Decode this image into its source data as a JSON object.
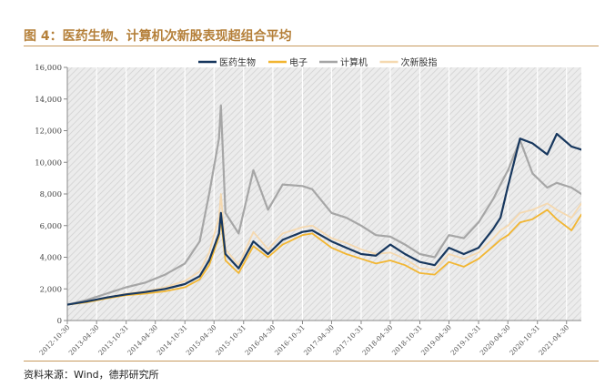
{
  "figure_title": "图 4：医药生物、计算机次新股表现超组合平均",
  "source_note": "资料来源：Wind，德邦研究所",
  "chart_data": {
    "type": "line",
    "title": "",
    "xlabel": "",
    "ylabel": "",
    "ylim": [
      0,
      16000
    ],
    "yticks": [
      0,
      2000,
      4000,
      6000,
      8000,
      10000,
      12000,
      14000,
      16000
    ],
    "ytick_labels": [
      "0",
      "2,000",
      "4,000",
      "6,000",
      "8,000",
      "10,000",
      "12,000",
      "14,000",
      "16,000"
    ],
    "xlim": [
      "2012-10-30",
      "2021-07-31"
    ],
    "xtick_labels": [
      "2012-10-30",
      "2013-04-30",
      "2013-10-31",
      "2014-04-30",
      "2014-10-31",
      "2015-04-30",
      "2015-10-31",
      "2016-04-30",
      "2016-10-31",
      "2017-04-30",
      "2017-10-31",
      "2018-04-30",
      "2018-10-31",
      "2019-04-30",
      "2019-10-31",
      "2020-04-30",
      "2020-10-31",
      "2021-04-30"
    ],
    "grid": true,
    "legend_position": "top-right",
    "series": [
      {
        "name": "医药生物",
        "color": "#17375e",
        "stroke": 2.2,
        "x": [
          "2012-10-30",
          "2013-02-28",
          "2013-06-30",
          "2013-10-31",
          "2014-02-28",
          "2014-06-30",
          "2014-10-31",
          "2015-01-31",
          "2015-03-31",
          "2015-05-31",
          "2015-06-12",
          "2015-07-10",
          "2015-09-30",
          "2015-12-31",
          "2016-03-31",
          "2016-06-30",
          "2016-10-31",
          "2016-12-31",
          "2017-04-30",
          "2017-07-31",
          "2017-10-31",
          "2018-01-31",
          "2018-04-30",
          "2018-07-31",
          "2018-10-31",
          "2019-01-31",
          "2019-04-30",
          "2019-07-31",
          "2019-10-31",
          "2020-01-31",
          "2020-03-15",
          "2020-05-01",
          "2020-07-15",
          "2020-09-30",
          "2020-12-31",
          "2021-02-28",
          "2021-05-31",
          "2021-07-31"
        ],
        "y": [
          1000,
          1200,
          1450,
          1650,
          1800,
          2000,
          2300,
          2800,
          3800,
          5500,
          6800,
          4200,
          3300,
          5000,
          4200,
          5100,
          5600,
          5700,
          5000,
          4600,
          4200,
          4100,
          4800,
          4200,
          3700,
          3500,
          4600,
          4200,
          4600,
          5800,
          6500,
          8500,
          11500,
          11200,
          10500,
          11800,
          11000,
          10800
        ]
      },
      {
        "name": "电子",
        "color": "#f2b632",
        "stroke": 1.8,
        "x": [
          "2012-10-30",
          "2013-02-28",
          "2013-06-30",
          "2013-10-31",
          "2014-02-28",
          "2014-06-30",
          "2014-10-31",
          "2015-01-31",
          "2015-03-31",
          "2015-05-31",
          "2015-06-12",
          "2015-07-10",
          "2015-09-30",
          "2015-12-31",
          "2016-03-31",
          "2016-06-30",
          "2016-10-31",
          "2016-12-31",
          "2017-04-30",
          "2017-07-31",
          "2017-10-31",
          "2018-01-31",
          "2018-04-30",
          "2018-07-31",
          "2018-10-31",
          "2019-01-31",
          "2019-04-30",
          "2019-07-31",
          "2019-10-31",
          "2020-01-31",
          "2020-03-15",
          "2020-05-01",
          "2020-07-15",
          "2020-09-30",
          "2020-12-31",
          "2021-02-28",
          "2021-05-31",
          "2021-07-31"
        ],
        "y": [
          1000,
          1150,
          1400,
          1600,
          1700,
          1850,
          2100,
          2600,
          3500,
          5300,
          6400,
          3800,
          3000,
          4700,
          4000,
          4800,
          5400,
          5500,
          4600,
          4200,
          3900,
          3600,
          3800,
          3500,
          3000,
          2900,
          3700,
          3400,
          3900,
          4700,
          5100,
          5400,
          6200,
          6400,
          7000,
          6400,
          5700,
          6700
        ]
      },
      {
        "name": "计算机",
        "color": "#a6a6a6",
        "stroke": 2.2,
        "x": [
          "2012-10-30",
          "2013-02-28",
          "2013-06-30",
          "2013-10-31",
          "2014-02-28",
          "2014-06-30",
          "2014-10-31",
          "2015-01-31",
          "2015-03-31",
          "2015-05-31",
          "2015-06-12",
          "2015-07-10",
          "2015-09-30",
          "2015-12-31",
          "2016-03-31",
          "2016-06-30",
          "2016-10-31",
          "2016-12-31",
          "2017-04-30",
          "2017-07-31",
          "2017-10-31",
          "2018-01-31",
          "2018-04-30",
          "2018-07-31",
          "2018-10-31",
          "2019-01-31",
          "2019-04-30",
          "2019-07-31",
          "2019-10-31",
          "2020-01-31",
          "2020-03-15",
          "2020-05-01",
          "2020-07-15",
          "2020-09-30",
          "2020-12-31",
          "2021-02-28",
          "2021-05-31",
          "2021-07-31"
        ],
        "y": [
          1000,
          1300,
          1700,
          2100,
          2400,
          2900,
          3600,
          5000,
          8000,
          11500,
          13600,
          6800,
          5500,
          9500,
          7000,
          8600,
          8500,
          8300,
          6800,
          6500,
          6000,
          5400,
          5300,
          4800,
          4200,
          4000,
          5400,
          5200,
          6200,
          7700,
          8600,
          9500,
          11400,
          9300,
          8400,
          8700,
          8400,
          8000
        ]
      },
      {
        "name": "次新股指",
        "color": "#f5d9b0",
        "stroke": 1.8,
        "x": [
          "2012-10-30",
          "2013-02-28",
          "2013-06-30",
          "2013-10-31",
          "2014-02-28",
          "2014-06-30",
          "2014-10-31",
          "2015-01-31",
          "2015-03-31",
          "2015-05-31",
          "2015-06-12",
          "2015-07-10",
          "2015-09-30",
          "2015-12-31",
          "2016-03-31",
          "2016-06-30",
          "2016-10-31",
          "2016-12-31",
          "2017-04-30",
          "2017-07-31",
          "2017-10-31",
          "2018-01-31",
          "2018-04-30",
          "2018-07-31",
          "2018-10-31",
          "2019-01-31",
          "2019-04-30",
          "2019-07-31",
          "2019-10-31",
          "2020-01-31",
          "2020-03-15",
          "2020-05-01",
          "2020-07-15",
          "2020-09-30",
          "2020-12-31",
          "2021-02-28",
          "2021-05-31",
          "2021-07-31"
        ],
        "y": [
          1000,
          1200,
          1450,
          1700,
          1850,
          2100,
          2500,
          3100,
          4300,
          6500,
          8000,
          4500,
          3500,
          5600,
          4500,
          5500,
          5900,
          6000,
          5200,
          4900,
          4500,
          4200,
          4300,
          3900,
          3300,
          3200,
          4200,
          3900,
          4300,
          5200,
          5700,
          6000,
          6800,
          7000,
          7400,
          7000,
          6500,
          7400
        ]
      }
    ]
  }
}
